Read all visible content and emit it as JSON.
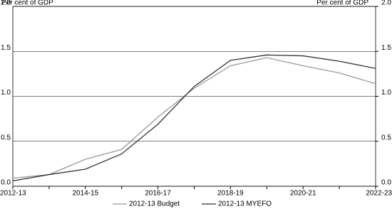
{
  "chart_data": {
    "type": "line",
    "y_label": "Per cent of GDP",
    "y2_label": "Per cent of GDP",
    "categories": [
      "2012-13",
      null,
      "2014-15",
      null,
      "2016-17",
      null,
      "2018-19",
      null,
      "2020-21",
      null,
      "2022-23"
    ],
    "series": [
      {
        "name": "2012-13 Budget",
        "color": "#999999",
        "values": [
          0.09,
          0.13,
          0.3,
          0.41,
          0.77,
          1.09,
          1.34,
          1.43,
          1.34,
          1.26,
          1.14
        ]
      },
      {
        "name": "2012-13 MYEFO",
        "color": "#333333",
        "values": [
          0.06,
          0.13,
          0.19,
          0.36,
          0.69,
          1.11,
          1.4,
          1.46,
          1.45,
          1.39,
          1.31
        ]
      }
    ],
    "ylim": [
      0,
      2
    ],
    "yticks": [
      {
        "value": 0,
        "label": "0.0"
      },
      {
        "value": 0.5,
        "label": "0.5"
      },
      {
        "value": 1,
        "label": "1.0"
      },
      {
        "value": 1.5,
        "label": "1.5"
      },
      {
        "value": 2,
        "label": "2.0"
      }
    ],
    "y2lim": [
      0,
      2
    ],
    "y2ticks": [
      {
        "value": 0,
        "label": "0.0"
      },
      {
        "value": 0.5,
        "label": "0.5"
      },
      {
        "value": 1,
        "label": "1.0"
      },
      {
        "value": 1.5,
        "label": "1.5"
      },
      {
        "value": 2,
        "label": "2.0"
      }
    ],
    "grid": true,
    "legend": "bottom"
  }
}
